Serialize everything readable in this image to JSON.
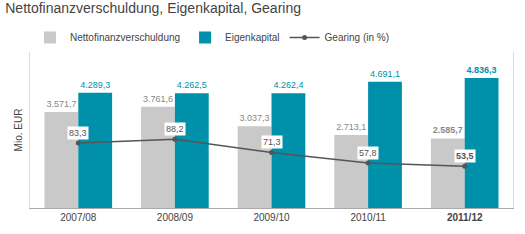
{
  "chart_data": {
    "type": "bar",
    "title": "Nettofinanzverschuldung, Eigenkapital, Gearing",
    "ylabel": "Mio. EUR",
    "categories": [
      "2007/08",
      "2008/09",
      "2009/10",
      "2010/11",
      "2011/12"
    ],
    "series": [
      {
        "name": "Nettofinanzverschuldung",
        "type": "bar",
        "color": "#c9c9c9",
        "values": [
          3571.7,
          3761.6,
          3037.3,
          2713.1,
          2585.7
        ],
        "value_labels": [
          "3.571,7",
          "3.761,6",
          "3.037,3",
          "2.713,1",
          "2.585,7"
        ]
      },
      {
        "name": "Eigenkapital",
        "type": "bar",
        "color": "#0090aa",
        "values": [
          4289.3,
          4262.5,
          4262.4,
          4691.1,
          4836.3
        ],
        "value_labels": [
          "4.289,3",
          "4.262,5",
          "4.262,4",
          "4.691,1",
          "4.836,3"
        ]
      },
      {
        "name": "Gearing (in %)",
        "type": "line",
        "axis": "y2",
        "color": "#555555",
        "values": [
          83.3,
          88.2,
          71.3,
          57.8,
          53.5
        ],
        "value_labels": [
          "83,3",
          "88,2",
          "71,3",
          "57,8",
          "53,5"
        ]
      }
    ],
    "ylim": [
      0,
      5800
    ],
    "y2lim": [
      0,
      200
    ],
    "data_labels": true,
    "tick_labels": "x",
    "grid": false,
    "legend": "top"
  }
}
